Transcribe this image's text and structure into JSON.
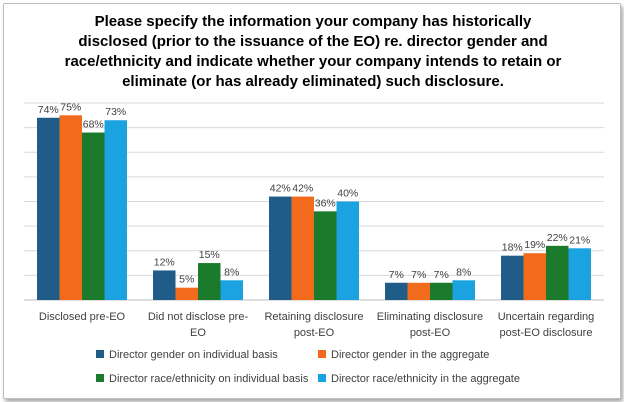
{
  "title": "Please specify the information your company has historically disclosed (prior to the issuance of the EO) re. director gender and race/ethnicity and indicate whether your company intends to retain or eliminate (or has already eliminated) such disclosure.",
  "colors": {
    "series": [
      "#1f5c88",
      "#f26b1d",
      "#1b7a2b",
      "#1aa3e0"
    ],
    "grid": "#d9d9d9",
    "axis": "#bfbfbf"
  },
  "chart_data": {
    "type": "bar",
    "title": "Please specify the information your company has historically disclosed (prior to the issuance of the EO) re. director gender and race/ethnicity and indicate whether your company intends to retain or eliminate (or has already eliminated) such disclosure.",
    "categories": [
      "Disclosed pre-EO",
      "Did not disclose pre-EO",
      "Retaining disclosure post-EO",
      "Eliminating disclosure post-EO",
      "Uncertain regarding post-EO disclosure"
    ],
    "category_lines": [
      [
        "Disclosed pre-EO"
      ],
      [
        "Did not disclose pre-",
        "EO"
      ],
      [
        "Retaining disclosure",
        "post-EO"
      ],
      [
        "Eliminating disclosure",
        "post-EO"
      ],
      [
        "Uncertain regarding",
        "post-EO disclosure"
      ]
    ],
    "series": [
      {
        "name": "Director gender on individual basis",
        "values": [
          74,
          12,
          42,
          7,
          18
        ],
        "labels": [
          "74%",
          "12%",
          "42%",
          "7%",
          "18%"
        ]
      },
      {
        "name": "Director gender in the aggregate",
        "values": [
          75,
          5,
          42,
          7,
          19
        ],
        "labels": [
          "75%",
          "5%",
          "42%",
          "7%",
          "19%"
        ]
      },
      {
        "name": "Director race/ethnicity on individual basis",
        "values": [
          68,
          15,
          36,
          7,
          22
        ],
        "labels": [
          "68%",
          "15%",
          "36%",
          "7%",
          "22%"
        ]
      },
      {
        "name": "Director race/ethnicity in the aggregate",
        "values": [
          73,
          8,
          40,
          8,
          21
        ],
        "labels": [
          "73%",
          "8%",
          "40%",
          "8%",
          "21%"
        ]
      }
    ],
    "ylim": [
      0,
      80
    ],
    "grid": true,
    "legend_position": "bottom",
    "data_labels": true
  }
}
